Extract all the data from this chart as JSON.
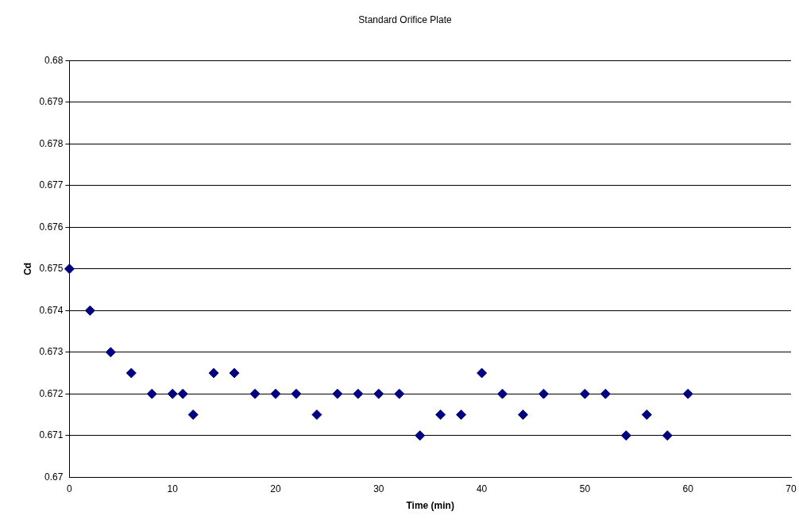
{
  "chart_data": {
    "type": "scatter",
    "title": "Standard Orifice Plate",
    "xlabel": "Time (min)",
    "ylabel": "Cd",
    "x": [
      0,
      2,
      4,
      6,
      8,
      10,
      11,
      12,
      14,
      16,
      18,
      20,
      22,
      24,
      26,
      28,
      30,
      32,
      34,
      36,
      38,
      40,
      42,
      44,
      46,
      50,
      52,
      54,
      56,
      58,
      60
    ],
    "series": [
      {
        "color": "#000080",
        "values": [
          0.675,
          0.674,
          0.673,
          0.6725,
          0.672,
          0.672,
          0.672,
          0.6715,
          0.6725,
          0.6725,
          0.672,
          0.672,
          0.672,
          0.6715,
          0.672,
          0.672,
          0.672,
          0.672,
          0.671,
          0.6715,
          0.6715,
          0.6725,
          0.672,
          0.6715,
          0.672,
          0.672,
          0.672,
          0.671,
          0.6715,
          0.671,
          0.672
        ]
      }
    ],
    "xlim": [
      0,
      70
    ],
    "xticks": [
      0,
      10,
      20,
      30,
      40,
      50,
      60,
      70
    ],
    "ylim": [
      0.67,
      0.68
    ],
    "yticks": [
      0.67,
      0.671,
      0.672,
      0.673,
      0.674,
      0.675,
      0.676,
      0.677,
      0.678,
      0.679,
      0.68
    ],
    "grid": "y",
    "legend": false,
    "marker": "diamond"
  }
}
